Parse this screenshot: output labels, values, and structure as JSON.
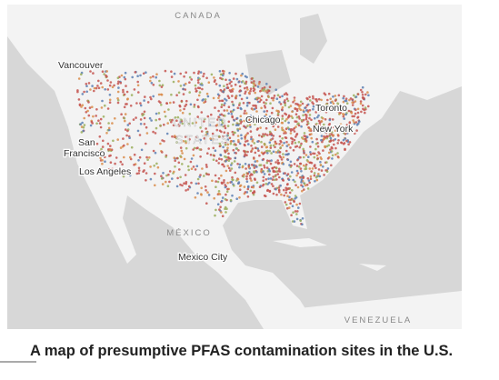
{
  "map": {
    "labels": [
      {
        "text": "CANADA",
        "kind": "country"
      },
      {
        "text": "Vancouver",
        "kind": "city"
      },
      {
        "text": "Toronto",
        "kind": "city"
      },
      {
        "text": "Chicago",
        "kind": "city"
      },
      {
        "text": "New York",
        "kind": "city"
      },
      {
        "text": "San",
        "kind": "city"
      },
      {
        "text": "Francisco",
        "kind": "city"
      },
      {
        "text": "Los Angeles",
        "kind": "city"
      },
      {
        "text": "UNITED",
        "kind": "faint"
      },
      {
        "text": "STATES",
        "kind": "faint"
      },
      {
        "text": "MÉXICO",
        "kind": "country"
      },
      {
        "text": "Mexico City",
        "kind": "city"
      },
      {
        "text": "VENEZUELA",
        "kind": "country"
      }
    ]
  },
  "caption": "A map of presumptive PFAS contamination sites in the U.S."
}
